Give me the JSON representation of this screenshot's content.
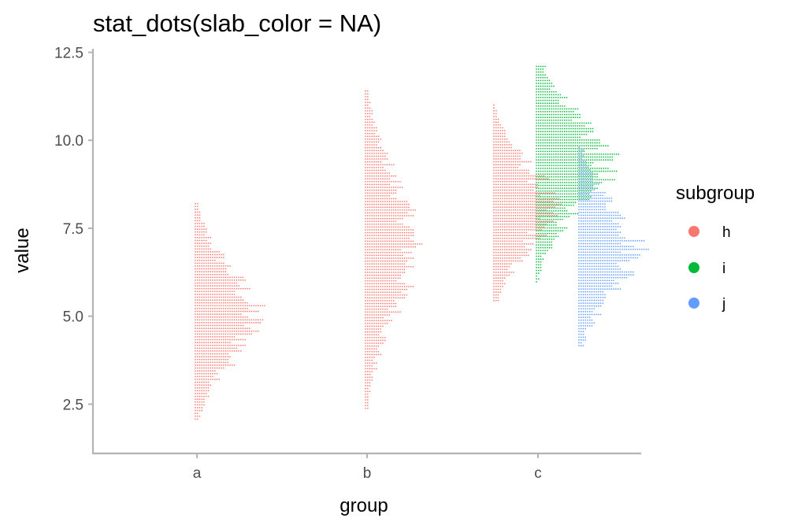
{
  "chart_data": {
    "type": "scatter",
    "subtype": "dotplot",
    "title": "stat_dots(slab_color = NA)",
    "xlabel": "group",
    "ylabel": "value",
    "categories": [
      "a",
      "b",
      "c"
    ],
    "y_ticks": [
      "2.5",
      "5.0",
      "7.5",
      "10.0",
      "12.5"
    ],
    "ylim": [
      1.1,
      12.6
    ],
    "grid": false,
    "legend": {
      "title": "subgroup",
      "placement": "right",
      "entries": [
        {
          "label": "h",
          "color": "#F8766D"
        },
        {
          "label": "i",
          "color": "#00BA38"
        },
        {
          "label": "j",
          "color": "#619CFF"
        }
      ]
    },
    "series": [
      {
        "group": "a",
        "subgroup": "h",
        "offset": 0.0,
        "min": 2.05,
        "max": 8.2,
        "mode": 5.0,
        "max_count": 27
      },
      {
        "group": "b",
        "subgroup": "h",
        "offset": 0.0,
        "min": 2.3,
        "max": 11.4,
        "mode": 7.0,
        "max_count": 22
      },
      {
        "group": "c",
        "subgroup": "h",
        "offset": -0.5,
        "min": 5.4,
        "max": 11.0,
        "mode": 8.1,
        "max_count": 26
      },
      {
        "group": "c",
        "subgroup": "i",
        "offset": 0.0,
        "min": 5.9,
        "max": 12.1,
        "mode": 9.4,
        "max_count": 32
      },
      {
        "group": "c",
        "subgroup": "j",
        "offset": 0.5,
        "min": 4.1,
        "max": 9.8,
        "mode": 6.9,
        "max_count": 27
      }
    ]
  }
}
